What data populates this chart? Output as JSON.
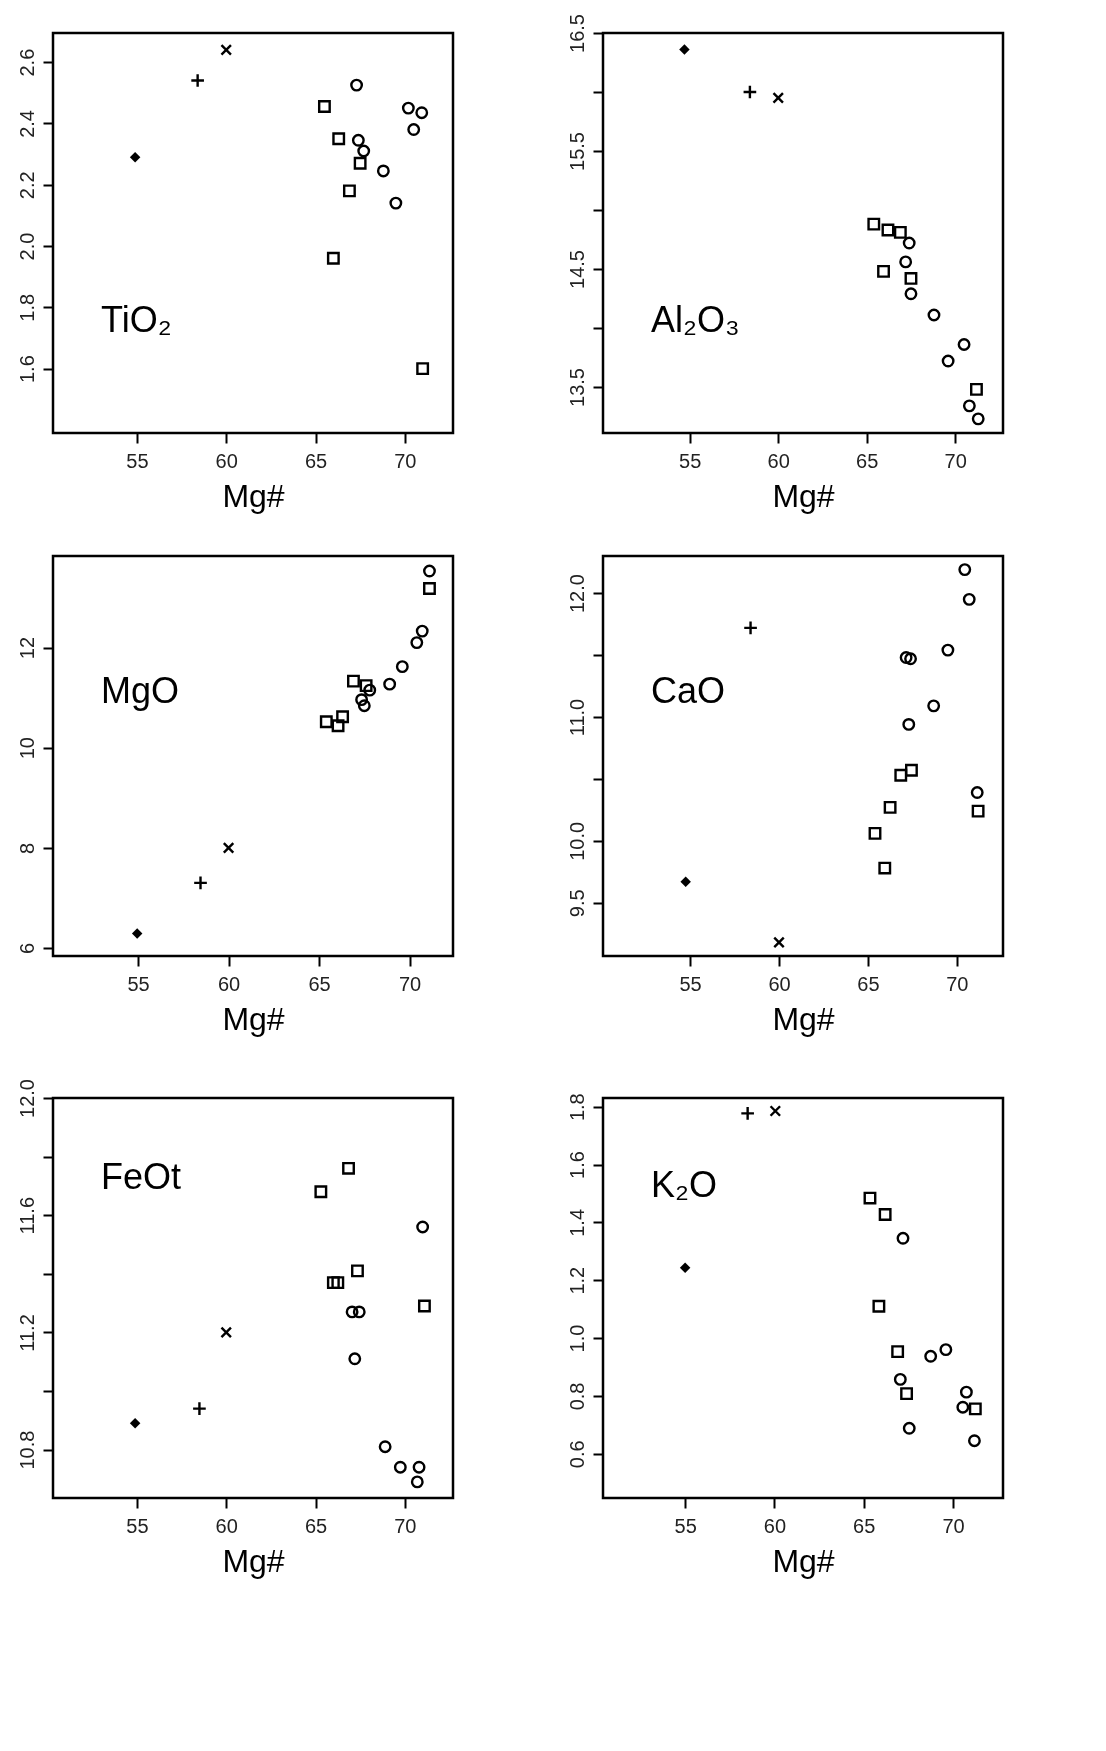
{
  "chart_data": [
    {
      "type": "scatter",
      "xlabel": "Mg#",
      "xlim": [
        50.3,
        72.7
      ],
      "xticks": [
        55,
        60,
        65,
        70
      ],
      "ylim": [
        1.39,
        2.695
      ],
      "yticks": [
        {
          "value": 1.6,
          "label": "1.6"
        },
        {
          "value": 1.8,
          "label": "1.8"
        },
        {
          "value": 2.0,
          "label": "2.0"
        },
        {
          "value": 2.2,
          "label": "2.2"
        },
        {
          "value": 2.4,
          "label": "2.4"
        },
        {
          "value": 2.6,
          "label": "2.6"
        }
      ],
      "annotations": [
        "TiO₂"
      ],
      "series": [
        {
          "color": "#000000",
          "marker": "diamond",
          "x": [
            54.9
          ],
          "values": [
            2.29
          ]
        },
        {
          "color": "#000000",
          "marker": "plus",
          "x": [
            58.4
          ],
          "values": [
            2.54
          ]
        },
        {
          "color": "#000000",
          "marker": "cross",
          "x": [
            60.0
          ],
          "values": [
            2.64
          ]
        },
        {
          "color": "#000000",
          "marker": "square",
          "x": [
            65.5,
            66.3,
            67.5,
            66.9,
            66.0,
            71.0
          ],
          "values": [
            2.455,
            2.35,
            2.27,
            2.18,
            1.96,
            1.6
          ]
        },
        {
          "color": "#000000",
          "marker": "circle",
          "x": [
            67.3,
            67.4,
            67.7,
            68.8,
            69.5,
            70.2,
            70.5,
            70.95
          ],
          "values": [
            2.525,
            2.345,
            2.31,
            2.245,
            2.14,
            2.45,
            2.38,
            2.435
          ]
        }
      ]
    },
    {
      "type": "scatter",
      "xlabel": "Mg#",
      "xlim": [
        50.1,
        72.7
      ],
      "xticks": [
        55,
        60,
        65,
        70
      ],
      "ylim": [
        13.11,
        16.5
      ],
      "yticks": [
        {
          "value": 13.5,
          "label": "13.5"
        },
        {
          "value": 14.0,
          "label": null
        },
        {
          "value": 14.5,
          "label": "14.5"
        },
        {
          "value": 15.0,
          "label": null
        },
        {
          "value": 15.5,
          "label": "15.5"
        },
        {
          "value": 16.0,
          "label": null
        },
        {
          "value": 16.5,
          "label": "16.5"
        }
      ],
      "annotations": [
        "Al₂O₃"
      ],
      "series": [
        {
          "color": "#000000",
          "marker": "diamond",
          "x": [
            54.7
          ],
          "values": [
            16.36
          ]
        },
        {
          "color": "#000000",
          "marker": "plus",
          "x": [
            58.4
          ],
          "values": [
            16.0
          ]
        },
        {
          "color": "#000000",
          "marker": "cross",
          "x": [
            60.0
          ],
          "values": [
            15.95
          ]
        },
        {
          "color": "#000000",
          "marker": "square",
          "x": [
            65.4,
            66.2,
            66.9,
            65.95,
            67.5,
            71.2
          ],
          "values": [
            14.88,
            14.83,
            14.81,
            14.48,
            14.42,
            13.48
          ]
        },
        {
          "color": "#000000",
          "marker": "circle",
          "x": [
            67.4,
            67.2,
            67.5,
            68.8,
            69.6,
            70.5,
            70.8,
            71.3
          ],
          "values": [
            14.72,
            14.56,
            14.29,
            14.11,
            13.72,
            13.86,
            13.34,
            13.23
          ]
        }
      ]
    },
    {
      "type": "scatter",
      "xlabel": "Mg#",
      "xlim": [
        50.3,
        72.4
      ],
      "xticks": [
        55,
        60,
        65,
        70
      ],
      "ylim": [
        5.84,
        13.83
      ],
      "yticks": [
        6,
        8,
        10,
        12
      ],
      "annotations": [
        "MgO"
      ],
      "series": [
        {
          "color": "#000000",
          "marker": "diamond",
          "x": [
            54.95
          ],
          "values": [
            6.29
          ]
        },
        {
          "color": "#000000",
          "marker": "plus",
          "x": [
            58.45
          ],
          "values": [
            7.3
          ]
        },
        {
          "color": "#000000",
          "marker": "cross",
          "x": [
            60.0
          ],
          "values": [
            8.0
          ]
        },
        {
          "color": "#000000",
          "marker": "square",
          "x": [
            65.4,
            66.05,
            66.3,
            66.9,
            67.6,
            71.1
          ],
          "values": [
            10.52,
            10.44,
            10.62,
            11.33,
            11.24,
            13.18
          ]
        },
        {
          "color": "#000000",
          "marker": "circle",
          "x": [
            67.35,
            67.5,
            67.8,
            68.9,
            69.6,
            70.4,
            70.7,
            71.1
          ],
          "values": [
            10.96,
            10.84,
            11.15,
            11.27,
            11.62,
            12.1,
            12.33,
            13.53
          ]
        }
      ]
    },
    {
      "type": "scatter",
      "xlabel": "Mg#",
      "xlim": [
        50.1,
        72.6
      ],
      "xticks": [
        55,
        60,
        65,
        70
      ],
      "ylim": [
        9.07,
        12.3
      ],
      "yticks": [
        {
          "value": 9.5,
          "label": "9.5"
        },
        {
          "value": 10,
          "label": "10.0"
        },
        {
          "value": 10.5,
          "label": null
        },
        {
          "value": 11,
          "label": "11.0"
        },
        {
          "value": 11.5,
          "label": null
        },
        {
          "value": 12,
          "label": "12.0"
        }
      ],
      "annotations": [
        "CaO"
      ],
      "series": [
        {
          "color": "#000000",
          "marker": "diamond",
          "x": [
            54.75
          ],
          "values": [
            9.67
          ]
        },
        {
          "color": "#000000",
          "marker": "plus",
          "x": [
            58.4
          ],
          "values": [
            11.72
          ]
        },
        {
          "color": "#000000",
          "marker": "cross",
          "x": [
            60.0
          ],
          "values": [
            9.18
          ]
        },
        {
          "color": "#000000",
          "marker": "square",
          "x": [
            65.4,
            66.25,
            65.95,
            66.85,
            67.45,
            71.2
          ],
          "values": [
            10.06,
            10.27,
            9.78,
            10.53,
            10.57,
            10.24
          ]
        },
        {
          "color": "#000000",
          "marker": "circle",
          "x": [
            67.15,
            67.4,
            67.3,
            68.7,
            69.5,
            70.45,
            70.7,
            71.15
          ],
          "values": [
            11.48,
            11.47,
            10.94,
            11.09,
            11.54,
            12.19,
            11.95,
            10.39
          ]
        }
      ]
    },
    {
      "type": "scatter",
      "xlabel": "Mg#",
      "xlim": [
        50.3,
        72.7
      ],
      "xticks": [
        55,
        60,
        65,
        70
      ],
      "ylim": [
        10.635,
        12.0
      ],
      "yticks": [
        {
          "value": 10.8,
          "label": "10.8"
        },
        {
          "value": 11.0,
          "label": null
        },
        {
          "value": 11.2,
          "label": "11.2"
        },
        {
          "value": 11.4,
          "label": null
        },
        {
          "value": 11.6,
          "label": "11.6"
        },
        {
          "value": 11.8,
          "label": null
        },
        {
          "value": 12.0,
          "label": "12.0"
        }
      ],
      "annotations": [
        "FeOt"
      ],
      "series": [
        {
          "color": "#000000",
          "marker": "diamond",
          "x": [
            54.9
          ],
          "values": [
            10.89
          ]
        },
        {
          "color": "#000000",
          "marker": "plus",
          "x": [
            58.5
          ],
          "values": [
            10.94
          ]
        },
        {
          "color": "#000000",
          "marker": "cross",
          "x": [
            60.0
          ],
          "values": [
            11.2
          ]
        },
        {
          "color": "#000000",
          "marker": "square",
          "x": [
            65.3,
            66.85,
            66.0,
            66.25,
            67.35,
            71.1
          ],
          "values": [
            11.68,
            11.76,
            11.37,
            11.37,
            11.41,
            11.29
          ]
        },
        {
          "color": "#000000",
          "marker": "circle",
          "x": [
            67.05,
            67.45,
            67.2,
            71.0,
            68.9,
            69.75,
            70.8,
            70.7
          ],
          "values": [
            11.27,
            11.27,
            11.11,
            11.56,
            10.81,
            10.74,
            10.74,
            10.69
          ]
        }
      ]
    },
    {
      "type": "scatter",
      "xlabel": "Mg#",
      "xlim": [
        50.4,
        72.8
      ],
      "xticks": [
        55,
        60,
        65,
        70
      ],
      "ylim": [
        0.447,
        1.83
      ],
      "yticks": [
        {
          "value": 0.6,
          "label": "0.6"
        },
        {
          "value": 0.8,
          "label": "0.8"
        },
        {
          "value": 1.0,
          "label": "1.0"
        },
        {
          "value": 1.2,
          "label": "1.2"
        },
        {
          "value": 1.4,
          "label": "1.4"
        },
        {
          "value": 1.6,
          "label": "1.6"
        },
        {
          "value": 1.8,
          "label": "1.8"
        }
      ],
      "annotations": [
        "K₂O"
      ],
      "series": [
        {
          "color": "#000000",
          "marker": "diamond",
          "x": [
            55.0
          ],
          "values": [
            1.243
          ]
        },
        {
          "color": "#000000",
          "marker": "plus",
          "x": [
            58.5
          ],
          "values": [
            1.777
          ]
        },
        {
          "color": "#000000",
          "marker": "cross",
          "x": [
            60.05
          ],
          "values": [
            1.785
          ]
        },
        {
          "color": "#000000",
          "marker": "square",
          "x": [
            65.35,
            66.2,
            65.85,
            66.9,
            67.4,
            71.25
          ],
          "values": [
            1.484,
            1.427,
            1.11,
            0.953,
            0.808,
            0.755
          ]
        },
        {
          "color": "#000000",
          "marker": "circle",
          "x": [
            67.2,
            67.05,
            67.55,
            68.75,
            69.6,
            70.75,
            70.55,
            71.2
          ],
          "values": [
            1.345,
            0.857,
            0.688,
            0.937,
            0.96,
            0.813,
            0.761,
            0.645
          ]
        }
      ]
    }
  ]
}
